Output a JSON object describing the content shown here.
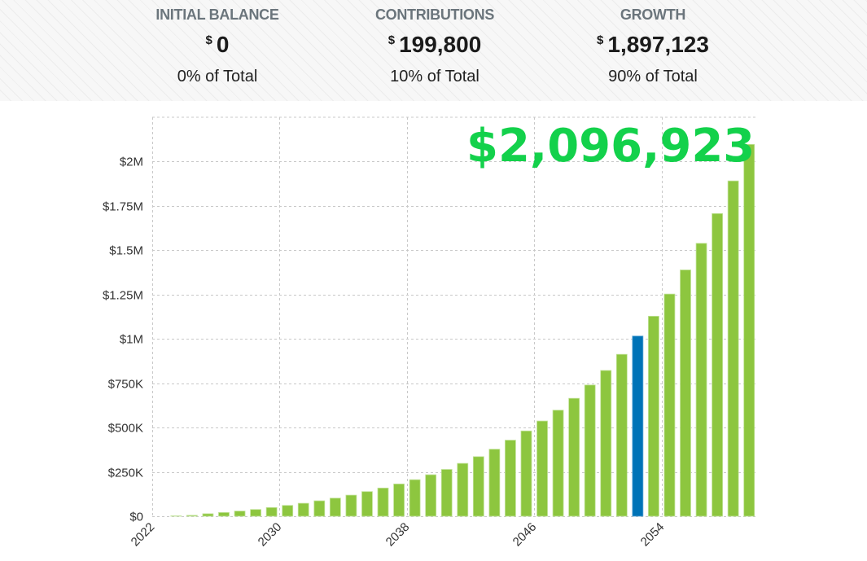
{
  "summary": [
    {
      "label": "INITIAL BALANCE",
      "currency": "$",
      "value": "0",
      "pct": "0% of Total"
    },
    {
      "label": "CONTRIBUTIONS",
      "currency": "$",
      "value": "199,800",
      "pct": "10% of Total"
    },
    {
      "label": "GROWTH",
      "currency": "$",
      "value": "1,897,123",
      "pct": "90% of Total"
    }
  ],
  "chart_data": {
    "type": "bar",
    "title": "$2,096,923",
    "xlabel": "",
    "ylabel": "",
    "ylim": [
      0,
      2250000
    ],
    "grid": true,
    "y_ticks": [
      0,
      250000,
      500000,
      750000,
      1000000,
      1250000,
      1500000,
      1750000,
      2000000
    ],
    "y_tick_labels": [
      "$0",
      "$250K",
      "$500K",
      "$750K",
      "$1M",
      "$1.25M",
      "$1.5M",
      "$1.75M",
      "$2M"
    ],
    "x_tick_labels": [
      "2022",
      "2030",
      "2038",
      "2046",
      "2054"
    ],
    "categories": [
      2022,
      2023,
      2024,
      2025,
      2026,
      2027,
      2028,
      2029,
      2030,
      2031,
      2032,
      2033,
      2034,
      2035,
      2036,
      2037,
      2038,
      2039,
      2040,
      2041,
      2042,
      2043,
      2044,
      2045,
      2046,
      2047,
      2048,
      2049,
      2050,
      2051,
      2052,
      2053,
      2054,
      2055,
      2056,
      2057,
      2058,
      2059
    ],
    "values": [
      0,
      2000,
      5000,
      14000,
      21000,
      29000,
      38000,
      49000,
      61000,
      73000,
      87000,
      102000,
      119000,
      139000,
      159000,
      182000,
      206000,
      234000,
      264000,
      298000,
      336000,
      378000,
      429000,
      481000,
      537000,
      598000,
      665000,
      740000,
      822000,
      913000,
      1016000,
      1128000,
      1253000,
      1389000,
      1539000,
      1707000,
      1891000,
      2096923
    ],
    "highlight_category": 2052,
    "colors": {
      "bar": "#8dc63f",
      "highlight": "#0073b7",
      "title": "#13d14b"
    }
  }
}
